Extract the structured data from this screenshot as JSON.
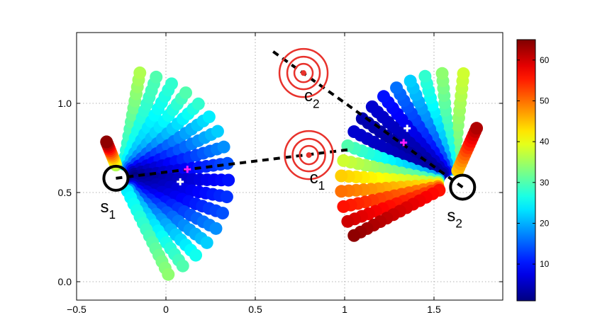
{
  "chart_data": {
    "type": "scatter",
    "title": "",
    "xlabel": "",
    "ylabel": "",
    "xlim": [
      -0.5,
      1.9
    ],
    "ylim": [
      -0.1,
      1.4
    ],
    "grid": true,
    "grid_style": "dotted",
    "x_ticks": [
      "−0.5",
      "0",
      "0.5",
      "1",
      "1.5"
    ],
    "x_tick_values": [
      -0.5,
      0,
      0.5,
      1,
      1.5
    ],
    "y_ticks": [
      "0.0",
      "0.5",
      "1.0"
    ],
    "y_tick_values": [
      0,
      0.5,
      1.0
    ],
    "colormap": "jet",
    "colorbar": {
      "min": 1,
      "max": 65,
      "ticks": [
        "10",
        "20",
        "30",
        "40",
        "50",
        "60"
      ],
      "tick_values": [
        10,
        20,
        30,
        40,
        50,
        60
      ]
    },
    "sensors": [
      {
        "name": "s",
        "sub": "1",
        "x": -0.28,
        "y": 0.58,
        "color": "#000000"
      },
      {
        "name": "s",
        "sub": "2",
        "x": 1.66,
        "y": 0.53,
        "color": "#000000"
      }
    ],
    "targets": [
      {
        "name": "c",
        "sub": "1",
        "x": 0.8,
        "y": 0.71,
        "color": "#e8322c"
      },
      {
        "name": "c",
        "sub": "2",
        "x": 0.77,
        "y": 1.17,
        "color": "#e8322c"
      }
    ],
    "dashed_lines": [
      {
        "x": [
          -0.28,
          1.02
        ],
        "y": [
          0.58,
          0.74
        ]
      },
      {
        "x": [
          0.6,
          1.66
        ],
        "y": [
          1.29,
          0.53
        ]
      }
    ],
    "fan_1": {
      "origin": [
        -0.25,
        0.58
      ],
      "inner_radius": 0.08,
      "outer_radius": 0.6,
      "points_per_ray": 14,
      "rays": [
        {
          "angle_deg": 80,
          "value_inner": 26,
          "value_outer": 36
        },
        {
          "angle_deg": 71,
          "value_inner": 24,
          "value_outer": 30
        },
        {
          "angle_deg": 62,
          "value_inner": 20,
          "value_outer": 28
        },
        {
          "angle_deg": 53,
          "value_inner": 16,
          "value_outer": 30
        },
        {
          "angle_deg": 44,
          "value_inner": 12,
          "value_outer": 28
        },
        {
          "angle_deg": 35,
          "value_inner": 8,
          "value_outer": 24
        },
        {
          "angle_deg": 26,
          "value_inner": 5,
          "value_outer": 22
        },
        {
          "angle_deg": 17,
          "value_inner": 3,
          "value_outer": 18
        },
        {
          "angle_deg": 8,
          "value_inner": 2,
          "value_outer": 14
        },
        {
          "angle_deg": -1,
          "value_inner": 1,
          "value_outer": 10
        },
        {
          "angle_deg": -10,
          "value_inner": 2,
          "value_outer": 12
        },
        {
          "angle_deg": -19,
          "value_inner": 3,
          "value_outer": 14
        },
        {
          "angle_deg": -28,
          "value_inner": 5,
          "value_outer": 18
        },
        {
          "angle_deg": -37,
          "value_inner": 8,
          "value_outer": 22
        },
        {
          "angle_deg": -46,
          "value_inner": 12,
          "value_outer": 26
        },
        {
          "angle_deg": -55,
          "value_inner": 18,
          "value_outer": 30
        },
        {
          "angle_deg": -64,
          "value_inner": 24,
          "value_outer": 34
        }
      ],
      "extra_ray": {
        "angle_deg": 112,
        "value_inner": 36,
        "value_outer": 64,
        "length": 0.22
      }
    },
    "fan_2": {
      "origin": [
        1.6,
        0.55
      ],
      "inner_radius": 0.08,
      "outer_radius": 0.62,
      "points_per_ray": 14,
      "rays": [
        {
          "angle_deg": 84,
          "value_inner": 30,
          "value_outer": 38
        },
        {
          "angle_deg": 95,
          "value_inner": 24,
          "value_outer": 34
        },
        {
          "angle_deg": 104,
          "value_inner": 18,
          "value_outer": 28
        },
        {
          "angle_deg": 112,
          "value_inner": 12,
          "value_outer": 22
        },
        {
          "angle_deg": 120,
          "value_inner": 8,
          "value_outer": 16
        },
        {
          "angle_deg": 128,
          "value_inner": 5,
          "value_outer": 10
        },
        {
          "angle_deg": 136,
          "value_inner": 3,
          "value_outer": 6
        },
        {
          "angle_deg": 144,
          "value_inner": 2,
          "value_outer": 4
        },
        {
          "angle_deg": 152,
          "value_inner": 3,
          "value_outer": 6
        },
        {
          "angle_deg": 160,
          "value_inner": 18,
          "value_outer": 30
        },
        {
          "angle_deg": 168,
          "value_inner": 28,
          "value_outer": 38
        },
        {
          "angle_deg": 176,
          "value_inner": 36,
          "value_outer": 44
        },
        {
          "angle_deg": 184,
          "value_inner": 42,
          "value_outer": 50
        },
        {
          "angle_deg": 192,
          "value_inner": 48,
          "value_outer": 56
        },
        {
          "angle_deg": 200,
          "value_inner": 52,
          "value_outer": 60
        },
        {
          "angle_deg": 208,
          "value_inner": 56,
          "value_outer": 64
        }
      ],
      "extra_ray": {
        "angle_deg": 66,
        "value_inner": 44,
        "value_outer": 62,
        "length": 0.34
      }
    },
    "markers": [
      {
        "x": 0.12,
        "y": 0.63,
        "color": "#ff1dff",
        "kind": "star"
      },
      {
        "x": 0.08,
        "y": 0.56,
        "color": "#ffffff",
        "kind": "star"
      },
      {
        "x": 1.33,
        "y": 0.78,
        "color": "#ff1dff",
        "kind": "star"
      },
      {
        "x": 1.35,
        "y": 0.86,
        "color": "#ffffff",
        "kind": "star"
      }
    ]
  }
}
